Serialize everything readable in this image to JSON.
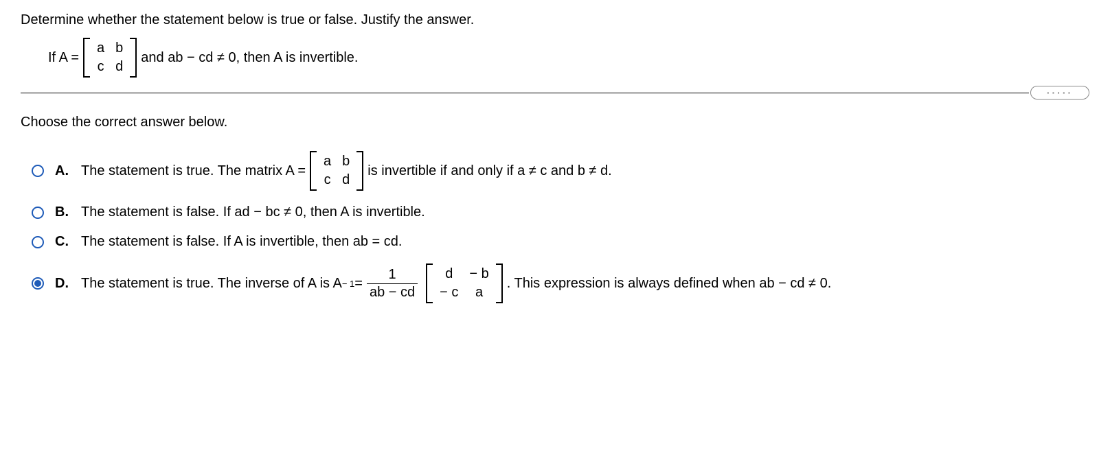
{
  "question": "Determine whether the statement below is true or false. Justify the answer.",
  "statement": {
    "prefix": "If A =",
    "matrix": [
      [
        "a",
        "b"
      ],
      [
        "c",
        "d"
      ]
    ],
    "suffix": "and ab − cd ≠ 0, then A is invertible."
  },
  "prompt": "Choose the correct answer below.",
  "divider_dots": "·····",
  "options": {
    "A": {
      "letter": "A.",
      "selected": false,
      "pre": "The statement is true. The matrix A =",
      "matrix": [
        [
          "a",
          "b"
        ],
        [
          "c",
          "d"
        ]
      ],
      "post": "is invertible if and only if a ≠ c and b ≠ d."
    },
    "B": {
      "letter": "B.",
      "selected": false,
      "text": "The statement is false. If ad − bc ≠ 0, then A is invertible."
    },
    "C": {
      "letter": "C.",
      "selected": false,
      "text": "The statement is false. If A is invertible, then ab = cd."
    },
    "D": {
      "letter": "D.",
      "selected": true,
      "pre": "The statement is true. The inverse of A is A",
      "exp": "− 1",
      "eq": " = ",
      "frac_num": "1",
      "frac_den": "ab − cd",
      "matrix": [
        [
          "d",
          "− b"
        ],
        [
          "− c",
          "a"
        ]
      ],
      "post": ". This expression is always defined when ab − cd ≠ 0."
    }
  }
}
